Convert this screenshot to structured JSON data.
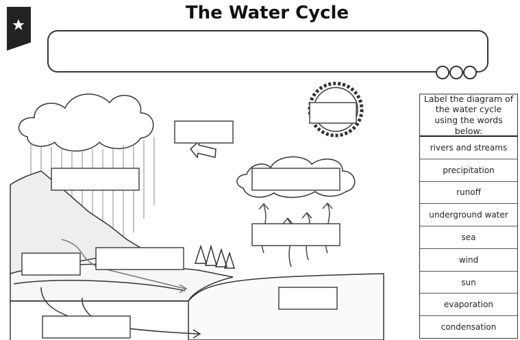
{
  "header": {
    "title": "The Water Cycle"
  },
  "word_bank": {
    "heading": "Label the diagram of the water cycle using the words below:",
    "words": [
      "rivers and streams",
      "precipitation",
      "runoff",
      "underground water",
      "sea",
      "wind",
      "sun",
      "evaporation",
      "condensation"
    ]
  }
}
